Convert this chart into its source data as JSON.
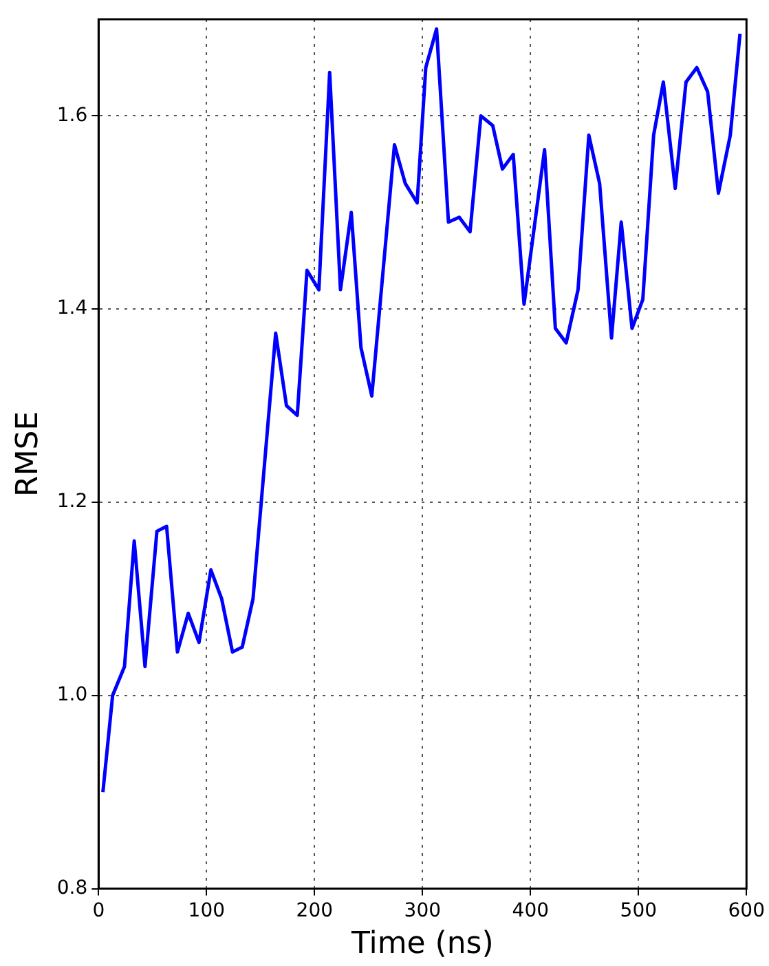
{
  "chart_data": {
    "type": "line",
    "xlabel": "Time (ns)",
    "ylabel": "RMSE",
    "x": [
      4,
      13,
      24,
      33,
      43,
      54,
      63,
      73,
      83,
      93,
      104,
      114,
      124,
      133,
      143,
      164,
      174,
      184,
      193,
      204,
      214,
      224,
      234,
      243,
      253,
      274,
      284,
      295,
      303,
      313,
      324,
      334,
      344,
      354,
      365,
      374,
      384,
      394,
      413,
      423,
      433,
      444,
      454,
      464,
      475,
      484,
      494,
      504,
      514,
      523,
      534,
      544,
      554,
      564,
      574,
      585,
      594
    ],
    "series": [
      {
        "color": "#0000ff",
        "values": [
          0.9,
          1.0,
          1.03,
          1.16,
          1.03,
          1.17,
          1.175,
          1.045,
          1.085,
          1.055,
          1.13,
          1.1,
          1.045,
          1.05,
          1.1,
          1.375,
          1.3,
          1.29,
          1.44,
          1.42,
          1.645,
          1.42,
          1.5,
          1.36,
          1.31,
          1.57,
          1.53,
          1.51,
          1.65,
          1.69,
          1.49,
          1.495,
          1.48,
          1.6,
          1.59,
          1.545,
          1.56,
          1.405,
          1.565,
          1.38,
          1.365,
          1.42,
          1.58,
          1.53,
          1.37,
          1.49,
          1.38,
          1.41,
          1.58,
          1.635,
          1.525,
          1.635,
          1.65,
          1.625,
          1.52,
          1.58,
          1.685
        ]
      }
    ],
    "xlim": [
      0,
      600
    ],
    "xticks": [
      0,
      100,
      200,
      300,
      400,
      500,
      600
    ],
    "ylim": [
      0.8,
      1.7
    ],
    "yticks": [
      {
        "value": 0.8,
        "label": "0.8"
      },
      {
        "value": 1.0,
        "label": "1.0"
      },
      {
        "value": 1.2,
        "label": "1.2"
      },
      {
        "value": 1.4,
        "label": "1.4"
      },
      {
        "value": 1.6,
        "label": "1.6"
      }
    ],
    "grid": true,
    "legend": false,
    "marker": "none",
    "line_style": "solid"
  }
}
